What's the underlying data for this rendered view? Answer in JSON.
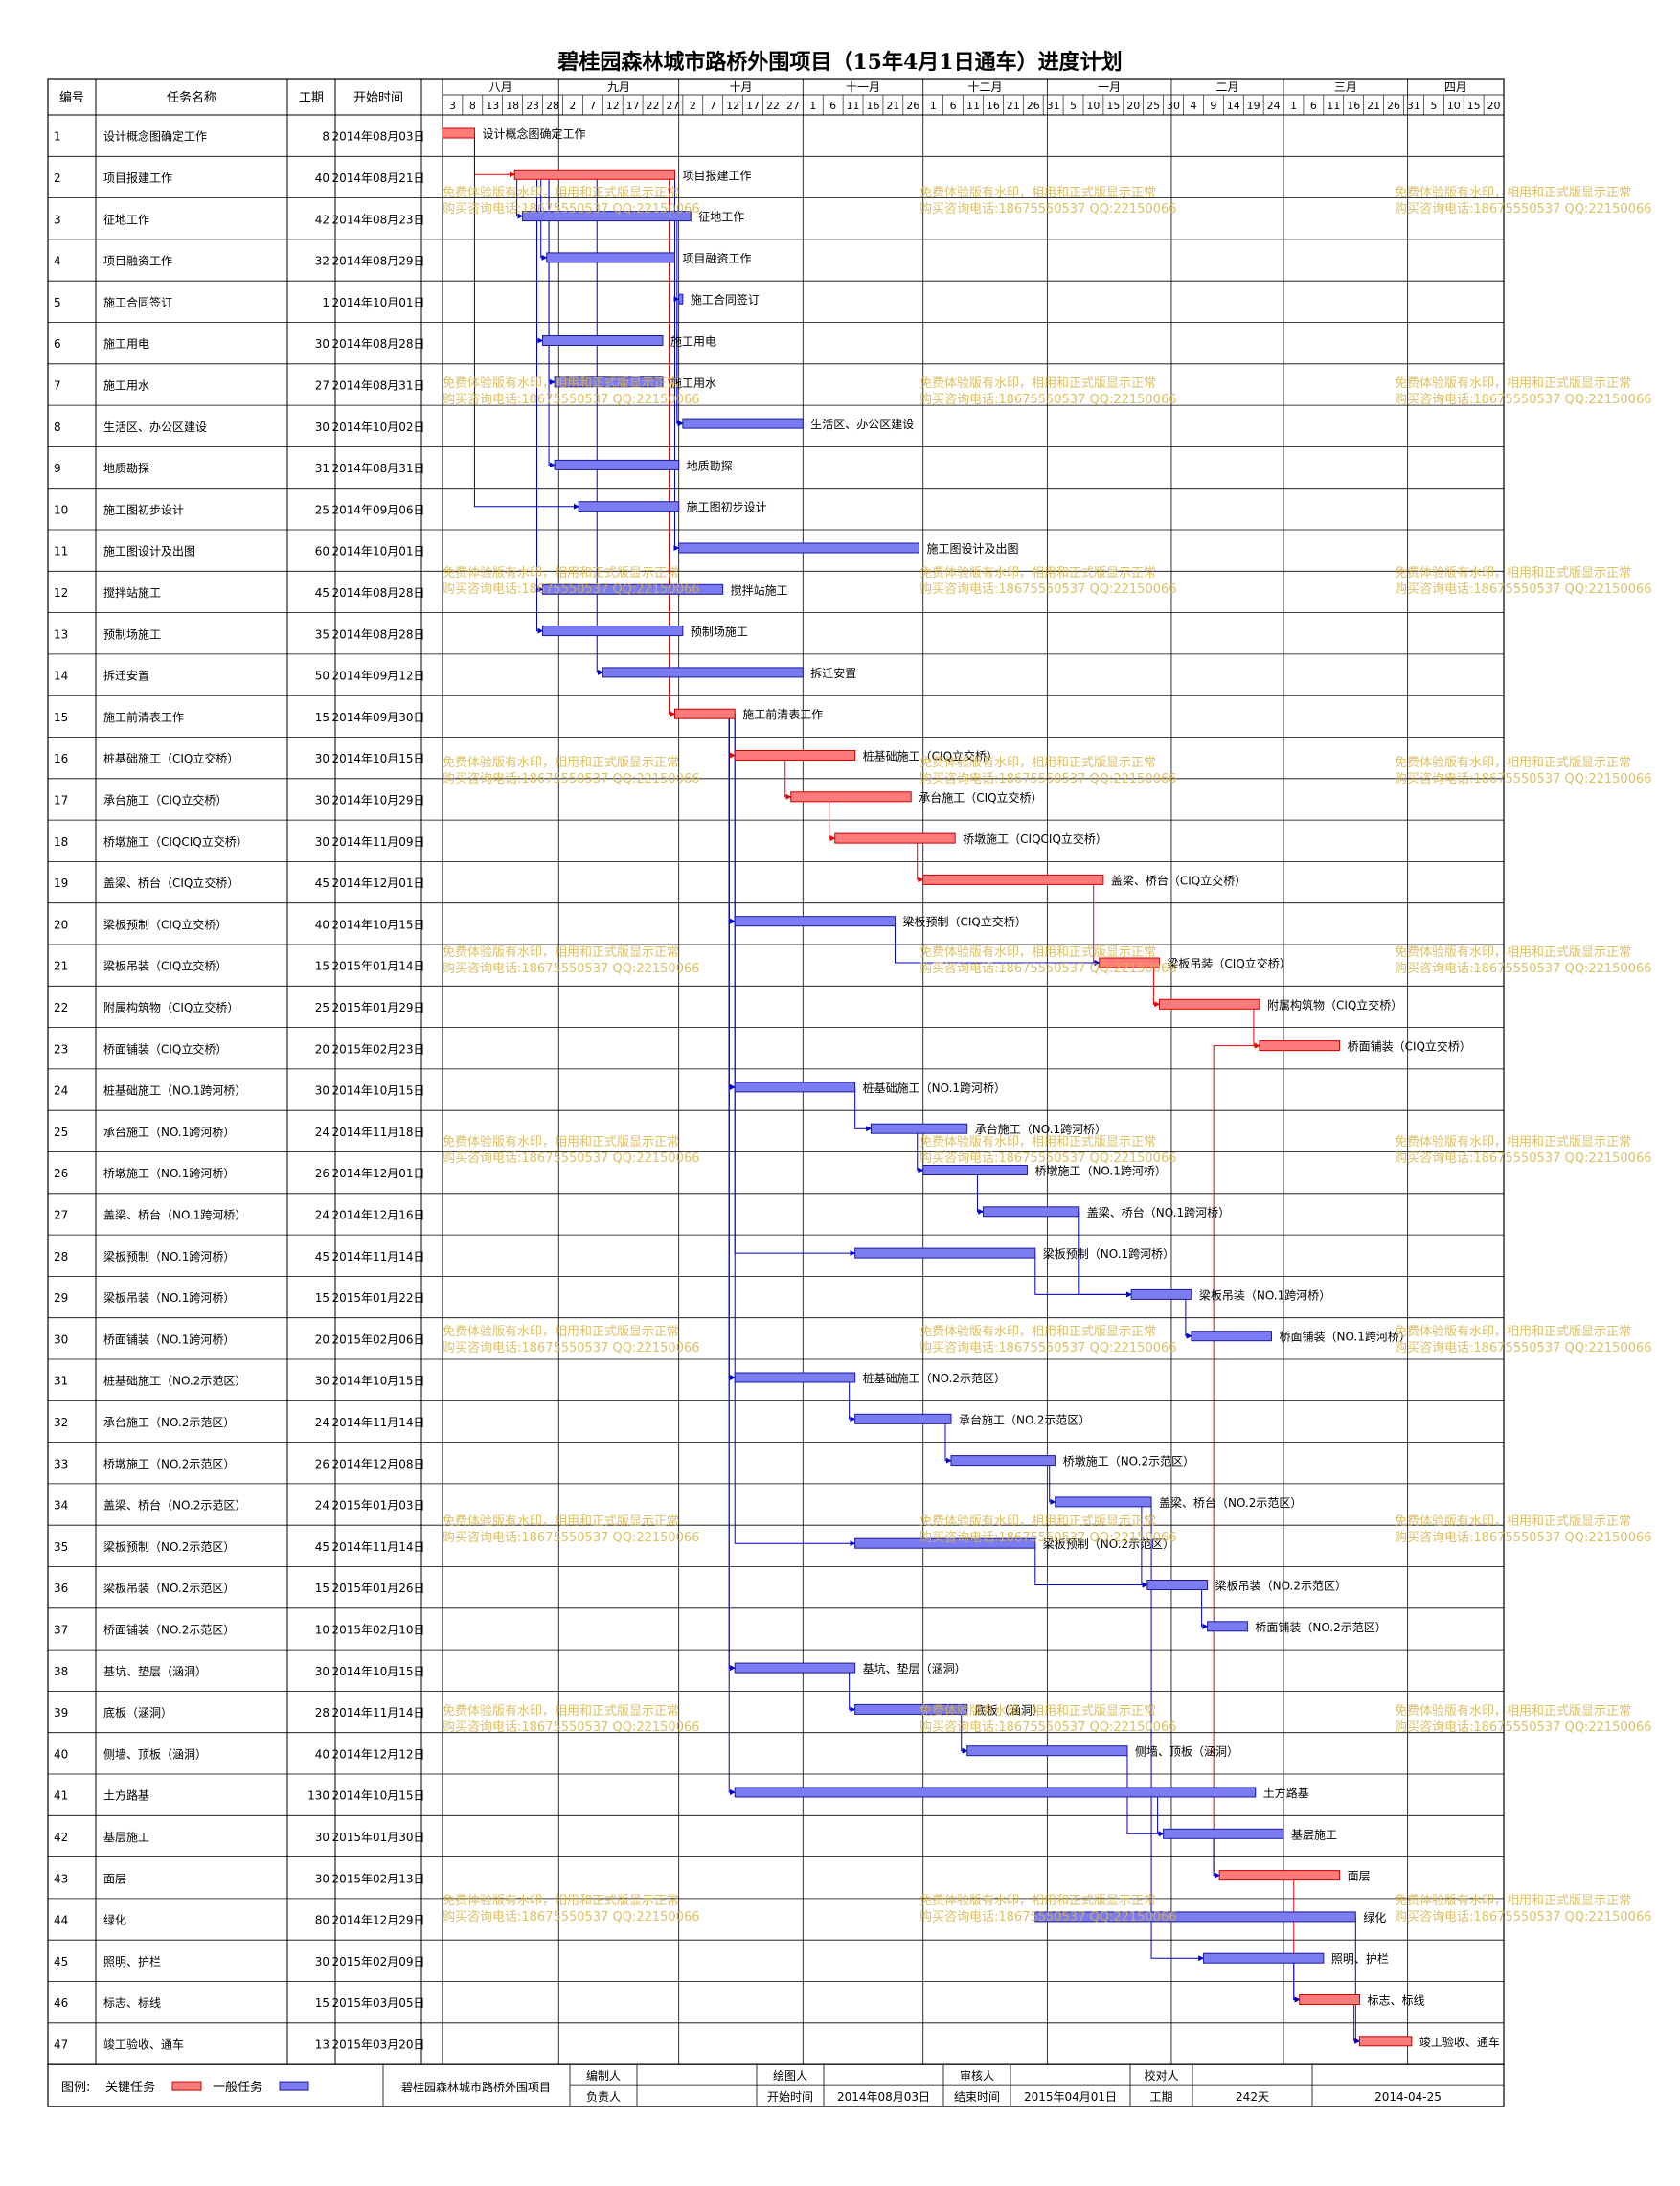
{
  "title": "碧桂园森林城市路桥外围项目（15年4月1日通车）进度计划",
  "headers": {
    "id": "编号",
    "name": "任务名称",
    "dur": "工期",
    "start": "开始时间"
  },
  "months": [
    "八月",
    "九月",
    "十月",
    "十一月",
    "十二月",
    "一月",
    "二月",
    "三月",
    "四月"
  ],
  "day_ticks": [
    "3",
    "8",
    "13",
    "18",
    "23",
    "28",
    "2",
    "7",
    "12",
    "17",
    "22",
    "27",
    "2",
    "7",
    "12",
    "17",
    "22",
    "27",
    "1",
    "6",
    "11",
    "16",
    "21",
    "26",
    "1",
    "6",
    "11",
    "16",
    "21",
    "26",
    "31",
    "5",
    "10",
    "15",
    "20",
    "25",
    "30",
    "4",
    "9",
    "14",
    "19",
    "24",
    "1",
    "6",
    "11",
    "16",
    "21",
    "26",
    "31",
    "5",
    "10",
    "15",
    "20"
  ],
  "colors": {
    "critical": "#ff7a7a",
    "critical_border": "#cc0000",
    "normal": "#7b7bf2",
    "normal_border": "#1a1aa0",
    "link_critical": "#ee0000",
    "link_normal": "#0000cc",
    "watermark": "#d8b44a"
  },
  "watermark": {
    "line1": "免费体验版有水印，相用和正式版显示正常",
    "line2": "购买咨询电话:18675550537 QQ:22150066"
  },
  "chart_data": {
    "type": "gantt",
    "title": "碧桂园森林城市路桥外围项目（15年4月1日通车）进度计划",
    "date_start": "2014-08-03",
    "date_end": "2015-04-25",
    "tasks": [
      {
        "id": "1",
        "name": "设计概念图确定工作",
        "dur": 8,
        "start": "2014年08月03日",
        "start_iso": "2014-08-03",
        "critical": true
      },
      {
        "id": "2",
        "name": "项目报建工作",
        "dur": 40,
        "start": "2014年08月21日",
        "start_iso": "2014-08-21",
        "critical": true
      },
      {
        "id": "3",
        "name": "征地工作",
        "dur": 42,
        "start": "2014年08月23日",
        "start_iso": "2014-08-23",
        "critical": false
      },
      {
        "id": "4",
        "name": "项目融资工作",
        "dur": 32,
        "start": "2014年08月29日",
        "start_iso": "2014-08-29",
        "critical": false
      },
      {
        "id": "5",
        "name": "施工合同签订",
        "dur": 1,
        "start": "2014年10月01日",
        "start_iso": "2014-10-01",
        "critical": false
      },
      {
        "id": "6",
        "name": "施工用电",
        "dur": 30,
        "start": "2014年08月28日",
        "start_iso": "2014-08-28",
        "critical": false
      },
      {
        "id": "7",
        "name": "施工用水",
        "dur": 27,
        "start": "2014年08月31日",
        "start_iso": "2014-08-31",
        "critical": false
      },
      {
        "id": "8",
        "name": "生活区、办公区建设",
        "dur": 30,
        "start": "2014年10月02日",
        "start_iso": "2014-10-02",
        "critical": false
      },
      {
        "id": "9",
        "name": "地质勘探",
        "dur": 31,
        "start": "2014年08月31日",
        "start_iso": "2014-08-31",
        "critical": false
      },
      {
        "id": "10",
        "name": "施工图初步设计",
        "dur": 25,
        "start": "2014年09月06日",
        "start_iso": "2014-09-06",
        "critical": false
      },
      {
        "id": "11",
        "name": "施工图设计及出图",
        "dur": 60,
        "start": "2014年10月01日",
        "start_iso": "2014-10-01",
        "critical": false
      },
      {
        "id": "12",
        "name": "搅拌站施工",
        "dur": 45,
        "start": "2014年08月28日",
        "start_iso": "2014-08-28",
        "critical": false
      },
      {
        "id": "13",
        "name": "预制场施工",
        "dur": 35,
        "start": "2014年08月28日",
        "start_iso": "2014-08-28",
        "critical": false
      },
      {
        "id": "14",
        "name": "拆迁安置",
        "dur": 50,
        "start": "2014年09月12日",
        "start_iso": "2014-09-12",
        "critical": false
      },
      {
        "id": "15",
        "name": "施工前清表工作",
        "dur": 15,
        "start": "2014年09月30日",
        "start_iso": "2014-09-30",
        "critical": true
      },
      {
        "id": "16",
        "name": "桩基础施工（CIQ立交桥）",
        "dur": 30,
        "start": "2014年10月15日",
        "start_iso": "2014-10-15",
        "critical": true
      },
      {
        "id": "17",
        "name": "承台施工（CIQ立交桥）",
        "dur": 30,
        "start": "2014年10月29日",
        "start_iso": "2014-10-29",
        "critical": true
      },
      {
        "id": "18",
        "name": "桥墩施工（CIQCIQ立交桥）",
        "dur": 30,
        "start": "2014年11月09日",
        "start_iso": "2014-11-09",
        "critical": true
      },
      {
        "id": "19",
        "name": "盖梁、桥台（CIQ立交桥）",
        "dur": 45,
        "start": "2014年12月01日",
        "start_iso": "2014-12-01",
        "critical": true
      },
      {
        "id": "20",
        "name": "梁板预制（CIQ立交桥）",
        "dur": 40,
        "start": "2014年10月15日",
        "start_iso": "2014-10-15",
        "critical": false
      },
      {
        "id": "21",
        "name": "梁板吊装（CIQ立交桥）",
        "dur": 15,
        "start": "2015年01月14日",
        "start_iso": "2015-01-14",
        "critical": true
      },
      {
        "id": "22",
        "name": "附属构筑物（CIQ立交桥）",
        "dur": 25,
        "start": "2015年01月29日",
        "start_iso": "2015-01-29",
        "critical": true
      },
      {
        "id": "23",
        "name": "桥面铺装（CIQ立交桥）",
        "dur": 20,
        "start": "2015年02月23日",
        "start_iso": "2015-02-23",
        "critical": true
      },
      {
        "id": "24",
        "name": "桩基础施工（NO.1跨河桥）",
        "dur": 30,
        "start": "2014年10月15日",
        "start_iso": "2014-10-15",
        "critical": false
      },
      {
        "id": "25",
        "name": "承台施工（NO.1跨河桥）",
        "dur": 24,
        "start": "2014年11月18日",
        "start_iso": "2014-11-18",
        "critical": false
      },
      {
        "id": "26",
        "name": "桥墩施工（NO.1跨河桥）",
        "dur": 26,
        "start": "2014年12月01日",
        "start_iso": "2014-12-01",
        "critical": false
      },
      {
        "id": "27",
        "name": "盖梁、桥台（NO.1跨河桥）",
        "dur": 24,
        "start": "2014年12月16日",
        "start_iso": "2014-12-16",
        "critical": false
      },
      {
        "id": "28",
        "name": "梁板预制（NO.1跨河桥）",
        "dur": 45,
        "start": "2014年11月14日",
        "start_iso": "2014-11-14",
        "critical": false
      },
      {
        "id": "29",
        "name": "梁板吊装（NO.1跨河桥）",
        "dur": 15,
        "start": "2015年01月22日",
        "start_iso": "2015-01-22",
        "critical": false
      },
      {
        "id": "30",
        "name": "桥面铺装（NO.1跨河桥）",
        "dur": 20,
        "start": "2015年02月06日",
        "start_iso": "2015-02-06",
        "critical": false
      },
      {
        "id": "31",
        "name": "桩基础施工（NO.2示范区）",
        "dur": 30,
        "start": "2014年10月15日",
        "start_iso": "2014-10-15",
        "critical": false
      },
      {
        "id": "32",
        "name": "承台施工（NO.2示范区）",
        "dur": 24,
        "start": "2014年11月14日",
        "start_iso": "2014-11-14",
        "critical": false
      },
      {
        "id": "33",
        "name": "桥墩施工（NO.2示范区）",
        "dur": 26,
        "start": "2014年12月08日",
        "start_iso": "2014-12-08",
        "critical": false
      },
      {
        "id": "34",
        "name": "盖梁、桥台（NO.2示范区）",
        "dur": 24,
        "start": "2015年01月03日",
        "start_iso": "2015-01-03",
        "critical": false
      },
      {
        "id": "35",
        "name": "梁板预制（NO.2示范区）",
        "dur": 45,
        "start": "2014年11月14日",
        "start_iso": "2014-11-14",
        "critical": false
      },
      {
        "id": "36",
        "name": "梁板吊装（NO.2示范区）",
        "dur": 15,
        "start": "2015年01月26日",
        "start_iso": "2015-01-26",
        "critical": false
      },
      {
        "id": "37",
        "name": "桥面铺装（NO.2示范区）",
        "dur": 10,
        "start": "2015年02月10日",
        "start_iso": "2015-02-10",
        "critical": false
      },
      {
        "id": "38",
        "name": "基坑、垫层（涵洞）",
        "dur": 30,
        "start": "2014年10月15日",
        "start_iso": "2014-10-15",
        "critical": false
      },
      {
        "id": "39",
        "name": "底板（涵洞）",
        "dur": 28,
        "start": "2014年11月14日",
        "start_iso": "2014-11-14",
        "critical": false
      },
      {
        "id": "40",
        "name": "侧墙、顶板（涵洞）",
        "dur": 40,
        "start": "2014年12月12日",
        "start_iso": "2014-12-12",
        "critical": false
      },
      {
        "id": "41",
        "name": "土方路基",
        "dur": 130,
        "start": "2014年10月15日",
        "start_iso": "2014-10-15",
        "critical": false
      },
      {
        "id": "42",
        "name": "基层施工",
        "dur": 30,
        "start": "2015年01月30日",
        "start_iso": "2015-01-30",
        "critical": false
      },
      {
        "id": "43",
        "name": "面层",
        "dur": 30,
        "start": "2015年02月13日",
        "start_iso": "2015-02-13",
        "critical": true
      },
      {
        "id": "44",
        "name": "绿化",
        "dur": 80,
        "start": "2014年12月29日",
        "start_iso": "2014-12-29",
        "critical": false
      },
      {
        "id": "45",
        "name": "照明、护栏",
        "dur": 30,
        "start": "2015年02月09日",
        "start_iso": "2015-02-09",
        "critical": false
      },
      {
        "id": "46",
        "name": "标志、标线",
        "dur": 15,
        "start": "2015年03月05日",
        "start_iso": "2015-03-05",
        "critical": true
      },
      {
        "id": "47",
        "name": "竣工验收、通车",
        "dur": 13,
        "start": "2015年03月20日",
        "start_iso": "2015-03-20",
        "critical": true
      }
    ],
    "links": [
      [
        1,
        2
      ],
      [
        2,
        15
      ],
      [
        15,
        16
      ],
      [
        16,
        17
      ],
      [
        17,
        18
      ],
      [
        18,
        19
      ],
      [
        19,
        21
      ],
      [
        21,
        22
      ],
      [
        22,
        23
      ],
      [
        23,
        43
      ],
      [
        43,
        46
      ],
      [
        46,
        47
      ],
      [
        2,
        3
      ],
      [
        2,
        4
      ],
      [
        2,
        5
      ],
      [
        2,
        6
      ],
      [
        2,
        7
      ],
      [
        2,
        9
      ],
      [
        2,
        12
      ],
      [
        2,
        13
      ],
      [
        2,
        14
      ],
      [
        1,
        10
      ],
      [
        5,
        8
      ],
      [
        4,
        11
      ],
      [
        3,
        8
      ],
      [
        15,
        20
      ],
      [
        20,
        21
      ],
      [
        15,
        24
      ],
      [
        24,
        25
      ],
      [
        25,
        26
      ],
      [
        26,
        27
      ],
      [
        27,
        29
      ],
      [
        28,
        29
      ],
      [
        29,
        30
      ],
      [
        15,
        28
      ],
      [
        15,
        31
      ],
      [
        31,
        32
      ],
      [
        32,
        33
      ],
      [
        33,
        34
      ],
      [
        34,
        36
      ],
      [
        35,
        36
      ],
      [
        36,
        37
      ],
      [
        15,
        35
      ],
      [
        15,
        38
      ],
      [
        38,
        39
      ],
      [
        39,
        40
      ],
      [
        40,
        42
      ],
      [
        41,
        42
      ],
      [
        42,
        43
      ],
      [
        44,
        47
      ],
      [
        45,
        46
      ],
      [
        15,
        41
      ],
      [
        34,
        45
      ]
    ]
  },
  "legend": {
    "label": "图例:",
    "critical": "关键任务",
    "normal": "一般任务"
  },
  "footer": {
    "project": "碧桂园森林城市路桥外围项目",
    "bianzhi": "编制人",
    "fuze": "负责人",
    "huitu": "绘图人",
    "shenhe": "审核人",
    "jiaodui": "校对人",
    "start_label": "开始时间",
    "start_val": "2014年08月03日",
    "end_label": "结束时间",
    "end_val": "2015年04月01日",
    "dur_label": "工期",
    "dur_val": "242天",
    "date_val": "2014-04-25"
  }
}
